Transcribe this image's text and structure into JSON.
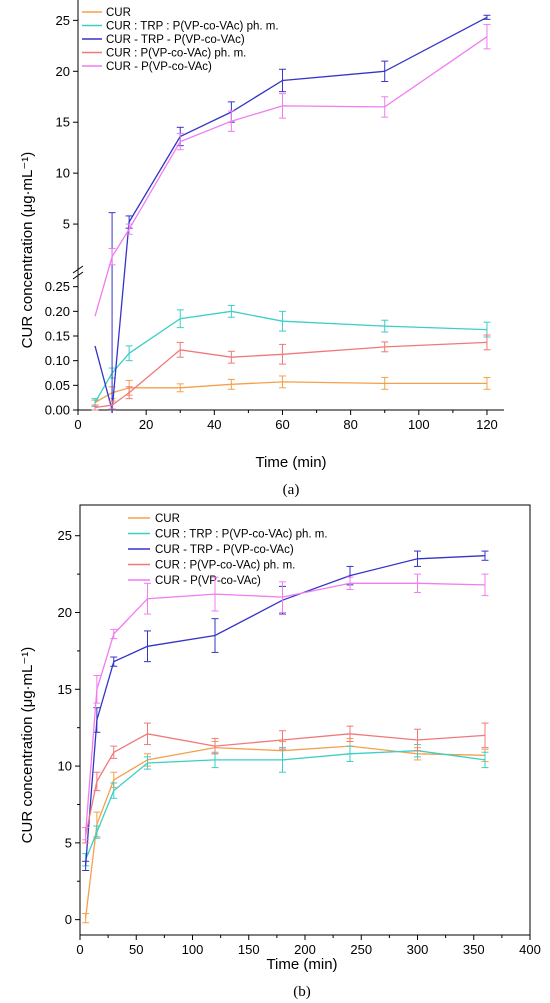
{
  "chart_data": [
    {
      "type": "line",
      "panel_label": "(a)",
      "xlabel": "Time (min)",
      "ylabel": "CUR concentration (μg·mL⁻¹)",
      "xlim": [
        0,
        125
      ],
      "xticks": [
        0,
        20,
        40,
        60,
        80,
        100,
        120
      ],
      "y_axis_break": true,
      "ylim_lower": [
        0,
        0.3
      ],
      "ylim_upper": [
        0,
        27
      ],
      "yticks_lower": [
        "0.00",
        "0.05",
        "0.10",
        "0.15",
        "0.20",
        "0.25"
      ],
      "yticks_upper": [
        "5",
        "10",
        "15",
        "20",
        "25"
      ],
      "legend_position": "top-left",
      "series": [
        {
          "name": "CUR",
          "color": "#F5A04A",
          "x": [
            5,
            10,
            15,
            30,
            45,
            60,
            90,
            120
          ],
          "y": [
            0.015,
            0.035,
            0.045,
            0.045,
            0.052,
            0.057,
            0.054,
            0.054
          ],
          "err": [
            0.005,
            0.012,
            0.015,
            0.008,
            0.01,
            0.012,
            0.012,
            0.012
          ]
        },
        {
          "name": "CUR : TRP : P(VP-co-VAc) ph. m.",
          "color": "#3BCFC7",
          "x": [
            5,
            10,
            15,
            30,
            45,
            60,
            90,
            120
          ],
          "y": [
            0.015,
            0.075,
            0.115,
            0.185,
            0.2,
            0.18,
            0.17,
            0.163
          ],
          "err": [
            0.008,
            0.01,
            0.015,
            0.018,
            0.012,
            0.02,
            0.012,
            0.015
          ]
        },
        {
          "name": "CUR - TRP - P(VP-co-VAc)",
          "color": "#3434C8",
          "x": [
            5,
            10,
            15,
            30,
            45,
            60,
            90,
            120
          ],
          "y": [
            0.13,
            0.0,
            5.2,
            13.6,
            16.0,
            19.1,
            20.0,
            25.3
          ],
          "err": [
            0,
            0.4,
            0.6,
            0.9,
            1.0,
            1.1,
            1.0,
            0.2
          ]
        },
        {
          "name": "CUR : P(VP-co-VAc) ph. m.",
          "color": "#F0787A",
          "x": [
            5,
            10,
            15,
            30,
            45,
            60,
            90,
            120
          ],
          "y": [
            0.005,
            0.01,
            0.035,
            0.122,
            0.107,
            0.113,
            0.128,
            0.137
          ],
          "err": [
            0.005,
            0.008,
            0.012,
            0.015,
            0.012,
            0.02,
            0.01,
            0.015
          ]
        },
        {
          "name": "CUR - P(VP-co-VAc)",
          "color": "#F07CF0",
          "x": [
            5,
            10,
            15,
            30,
            45,
            60,
            90,
            120
          ],
          "y": [
            0.19,
            1.8,
            4.5,
            13.1,
            15.1,
            16.6,
            16.5,
            23.4
          ],
          "err": [
            0,
            0.8,
            0.5,
            0.8,
            1.0,
            1.2,
            1.0,
            1.2
          ]
        }
      ]
    },
    {
      "type": "line",
      "panel_label": "(b)",
      "xlabel": "Time (min)",
      "ylabel": "CUR concentration (μg·mL⁻¹)",
      "xlim": [
        0,
        400
      ],
      "xticks": [
        0,
        50,
        100,
        150,
        200,
        250,
        300,
        350,
        400
      ],
      "ylim": [
        -1,
        27
      ],
      "yticks": [
        0,
        5,
        10,
        15,
        20,
        25
      ],
      "legend_position": "top-left",
      "series": [
        {
          "name": "CUR",
          "color": "#F5A04A",
          "x": [
            5,
            15,
            30,
            60,
            120,
            180,
            240,
            300,
            360
          ],
          "y": [
            0.1,
            6.2,
            9.1,
            10.4,
            11.2,
            11.0,
            11.3,
            10.8,
            10.7
          ],
          "err": [
            0.3,
            0.8,
            0.5,
            0.4,
            0.4,
            0.6,
            0.5,
            0.4,
            0.4
          ]
        },
        {
          "name": "CUR : TRP : P(VP-co-VAc) ph. m.",
          "color": "#3BCFC7",
          "x": [
            5,
            15,
            30,
            60,
            120,
            180,
            240,
            300,
            360
          ],
          "y": [
            3.9,
            5.7,
            8.4,
            10.2,
            10.4,
            10.4,
            10.8,
            11.0,
            10.4
          ],
          "err": [
            0.4,
            0.4,
            0.5,
            0.4,
            0.5,
            0.8,
            0.5,
            0.4,
            0.5
          ]
        },
        {
          "name": "CUR - TRP - P(VP-co-VAc)",
          "color": "#3434C8",
          "x": [
            5,
            15,
            30,
            60,
            120,
            180,
            240,
            300,
            360
          ],
          "y": [
            3.5,
            13.0,
            16.8,
            17.8,
            18.5,
            20.8,
            22.4,
            23.5,
            23.7
          ],
          "err": [
            0.3,
            0.8,
            0.3,
            1.0,
            1.1,
            0.9,
            0.6,
            0.5,
            0.3
          ]
        },
        {
          "name": "CUR : P(VP-co-VAc) ph. m.",
          "color": "#F0787A",
          "x": [
            5,
            15,
            30,
            60,
            120,
            180,
            240,
            300,
            360
          ],
          "y": [
            5.5,
            9.0,
            10.9,
            12.1,
            11.3,
            11.7,
            12.1,
            11.7,
            12.0
          ],
          "err": [
            0.5,
            0.6,
            0.4,
            0.7,
            0.5,
            0.6,
            0.5,
            0.7,
            0.8
          ]
        },
        {
          "name": "CUR - P(VP-co-VAc)",
          "color": "#F07CF0",
          "x": [
            5,
            15,
            30,
            60,
            120,
            180,
            240,
            300,
            360
          ],
          "y": [
            5.6,
            15.0,
            18.6,
            20.9,
            21.2,
            21.0,
            21.9,
            21.9,
            21.8
          ],
          "err": [
            0.4,
            0.9,
            0.3,
            1.0,
            1.1,
            1.0,
            0.4,
            0.6,
            0.7
          ]
        }
      ]
    }
  ]
}
